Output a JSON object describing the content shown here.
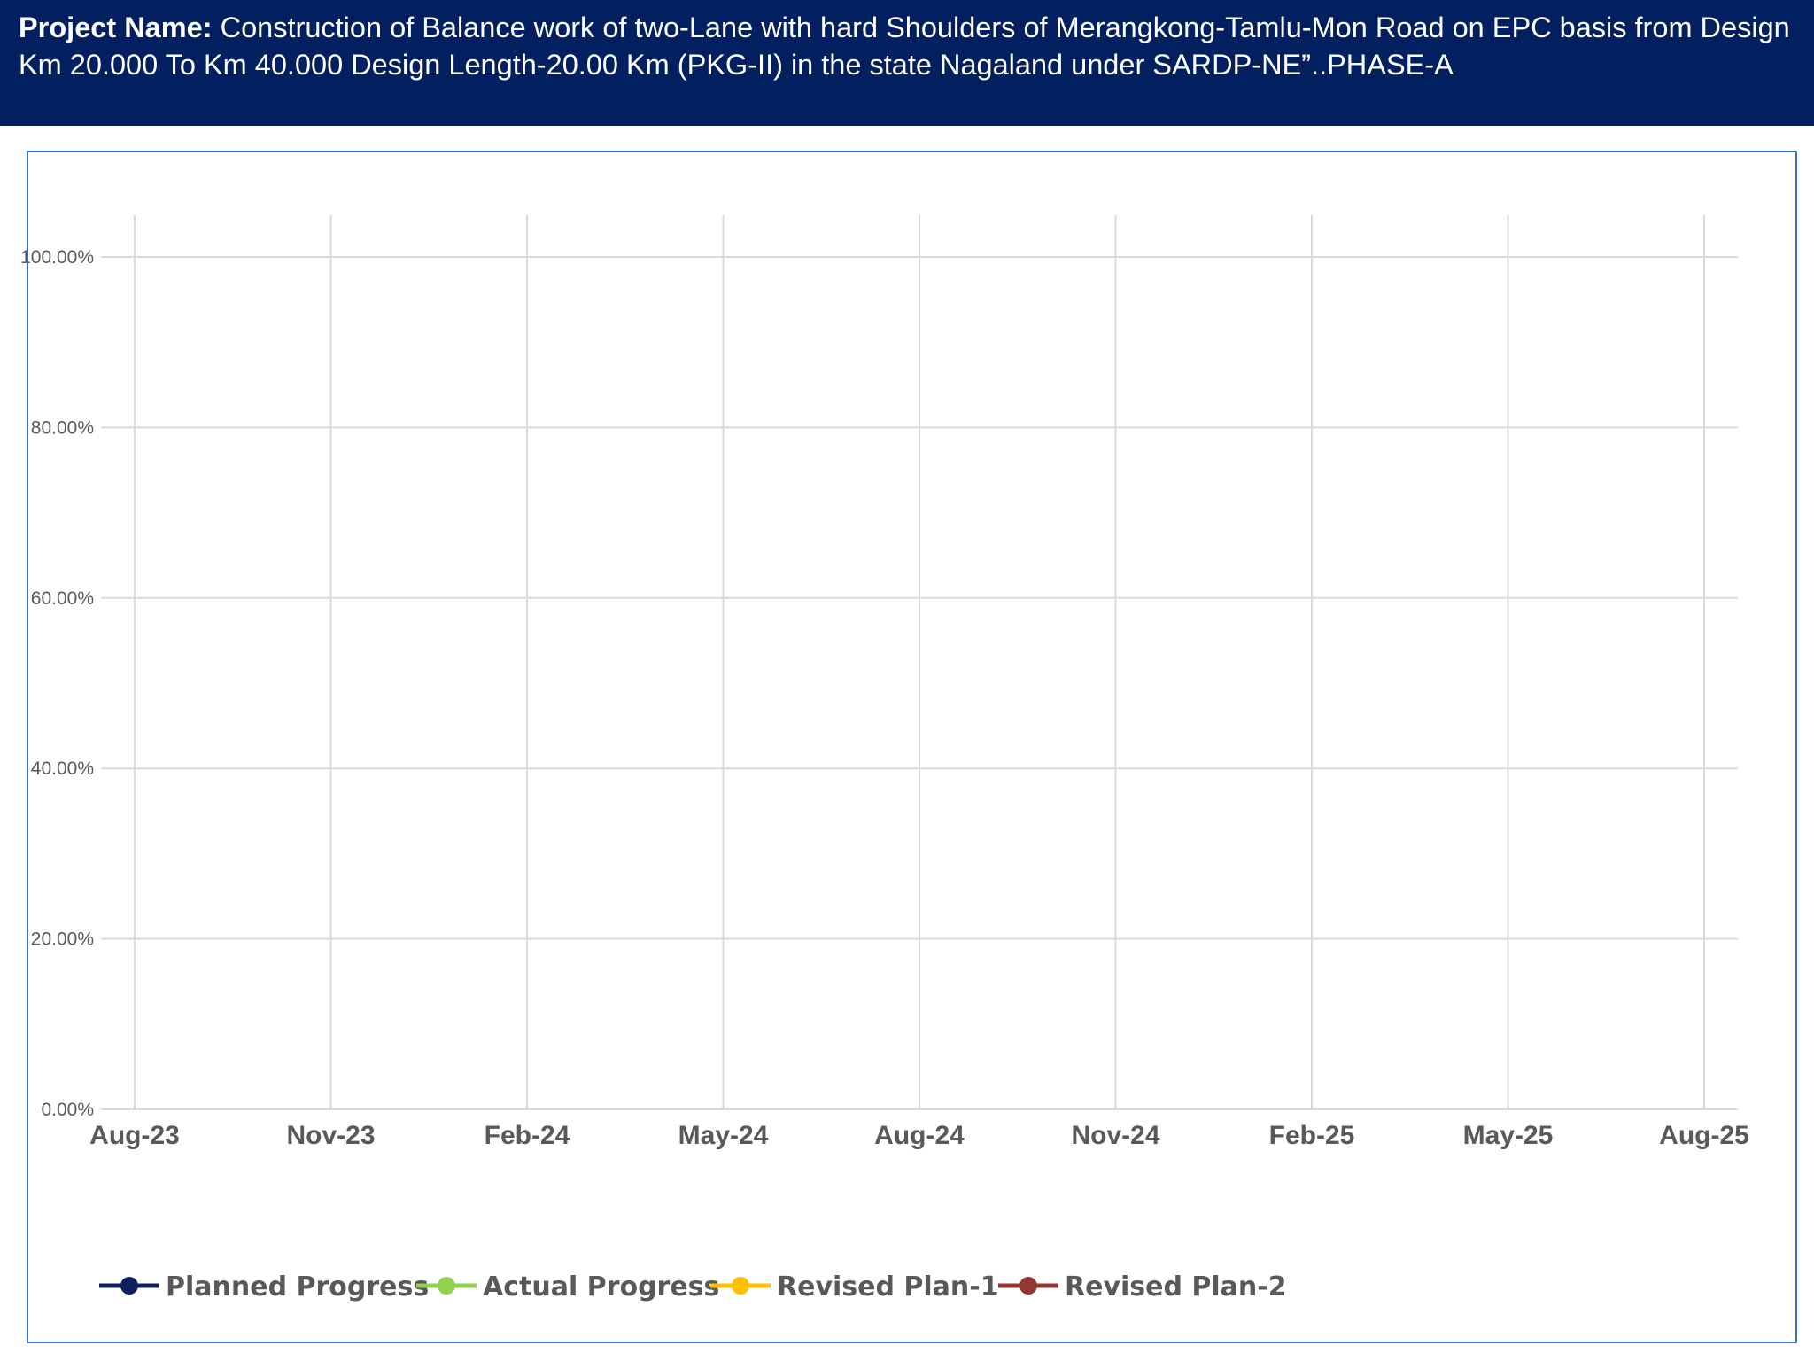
{
  "header": {
    "label": "Project Name:",
    "text": " Construction of Balance work of  two-Lane with hard Shoulders of Merangkong-Tamlu-Mon Road on EPC basis from Design Km 20.000 To Km 40.000 Design Length-20.00 Km (PKG-II) in the state Nagaland under SARDP-NE”..PHASE-A"
  },
  "colors": {
    "header_bg": "#02205f",
    "frame_border": "#3a6fc4",
    "grid": "#d9d9d9",
    "tick_text": "#595959"
  },
  "chart_data": {
    "type": "line",
    "title": "",
    "xlabel": "",
    "ylabel": "",
    "x_ticks": [
      "Aug-23",
      "Nov-23",
      "Feb-24",
      "May-24",
      "Aug-24",
      "Nov-24",
      "Feb-25",
      "May-25",
      "Aug-25"
    ],
    "y_ticks": [
      "0.00%",
      "20.00%",
      "40.00%",
      "60.00%",
      "80.00%",
      "100.00%"
    ],
    "ylim": [
      0,
      1
    ],
    "xlim": [
      "Aug-23",
      "Aug-25"
    ],
    "grid": true,
    "legend_position": "bottom-left",
    "series": [
      {
        "name": "Planned Progress",
        "color": "#0f1f5c",
        "values": []
      },
      {
        "name": "Actual Progress",
        "color": "#92d050",
        "values": []
      },
      {
        "name": "Revised Plan-1",
        "color": "#ffc000",
        "values": []
      },
      {
        "name": "Revised Plan-2",
        "color": "#943634",
        "values": []
      }
    ]
  }
}
